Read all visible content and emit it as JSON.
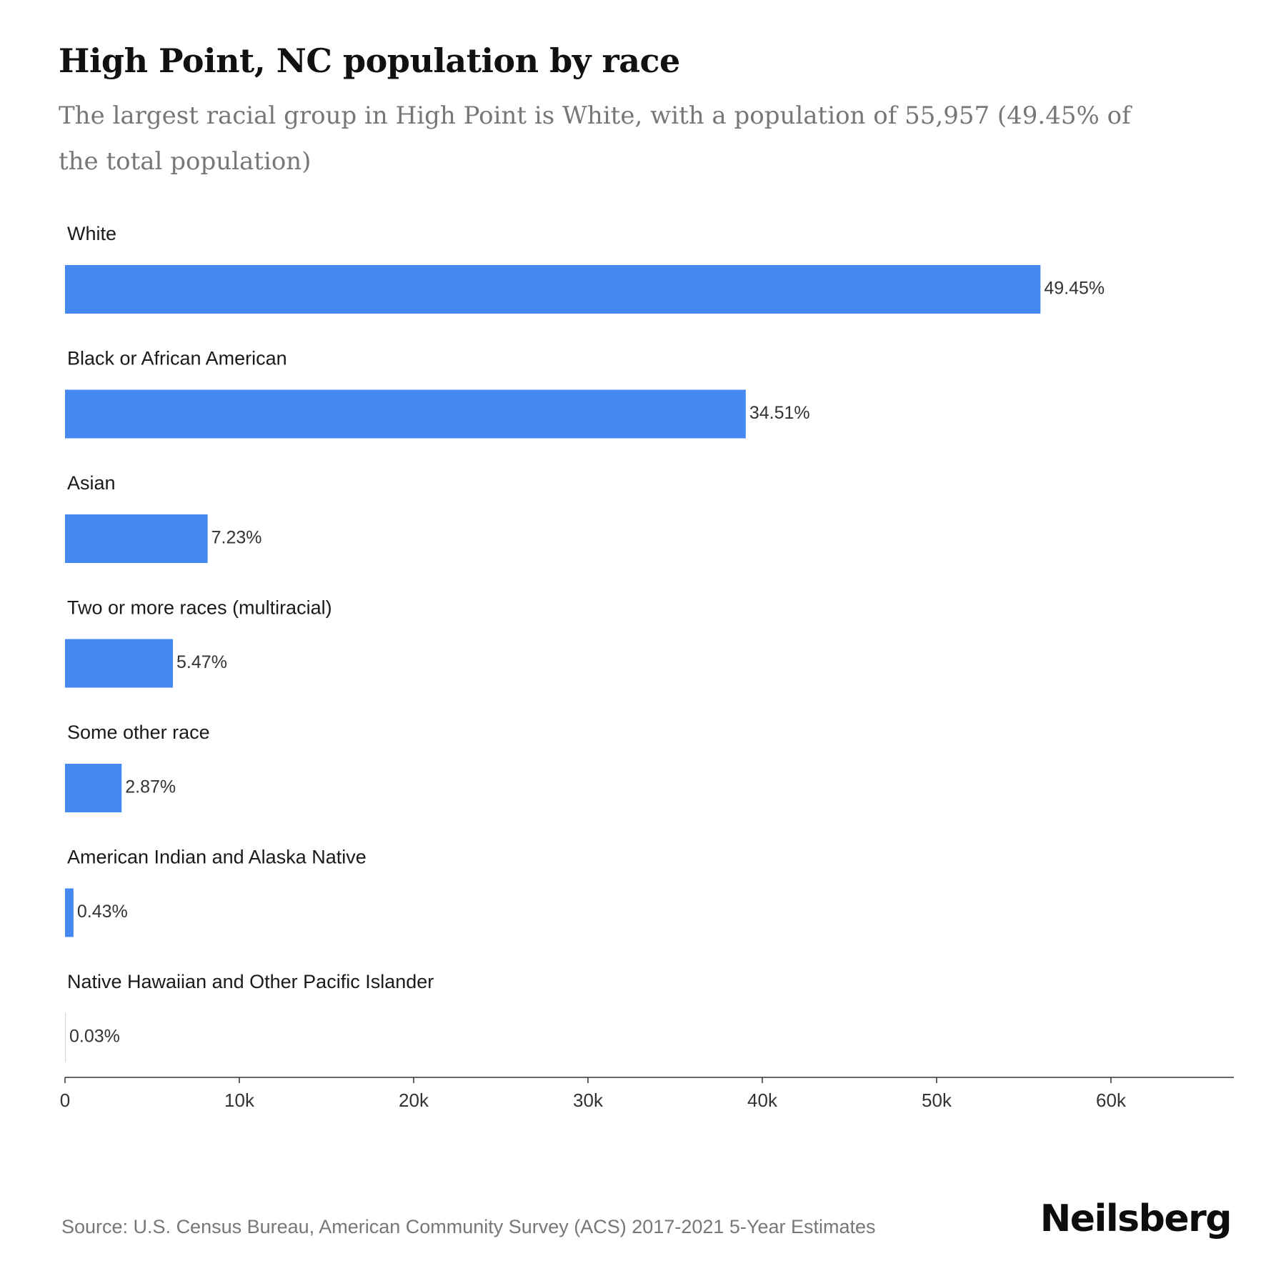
{
  "header": {
    "title": "High Point, NC population by race",
    "subtitle": "The largest racial group in High Point is White, with a population of 55,957 (49.45% of the total population)"
  },
  "chart_data": {
    "type": "bar",
    "orientation": "horizontal",
    "categories": [
      "White",
      "Black or African American",
      "Asian",
      "Two or more races (multiracial)",
      "Some other race",
      "American Indian and Alaska Native",
      "Native Hawaiian and Other Pacific Islander"
    ],
    "values": [
      55957,
      39050,
      8181,
      6190,
      3248,
      487,
      34
    ],
    "data_labels": [
      "49.45%",
      "34.51%",
      "7.23%",
      "5.47%",
      "2.87%",
      "0.43%",
      "0.03%"
    ],
    "xlim": [
      0,
      67000
    ],
    "x_ticks": [
      0,
      10000,
      20000,
      30000,
      40000,
      50000,
      60000
    ],
    "x_tick_labels": [
      "0",
      "10k",
      "20k",
      "30k",
      "40k",
      "50k",
      "60k"
    ],
    "bar_color": "#4688f1",
    "grid": false,
    "legend": "none"
  },
  "footer": {
    "source": "Source: U.S. Census Bureau, American Community Survey (ACS) 2017-2021 5-Year Estimates",
    "brand": "Neilsberg"
  }
}
